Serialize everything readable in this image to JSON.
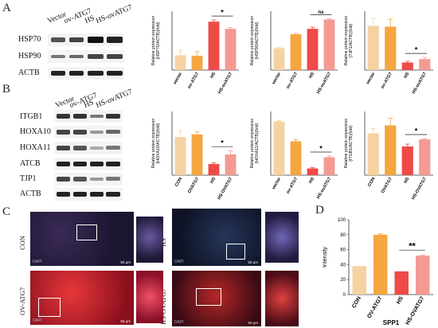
{
  "panels": {
    "a": "A",
    "b": "B",
    "c": "C",
    "d": "D"
  },
  "blot_a": {
    "lanes": [
      "Vector",
      "ov-ATG7",
      "HS",
      "HS-ovATG7"
    ],
    "rows": [
      "HSP70",
      "HSP90",
      "ACTB"
    ]
  },
  "blot_b": {
    "lanes": [
      "Vector",
      "ov-ATG7",
      "HS",
      "HS-ovATG7"
    ],
    "rows": [
      "ITGB1",
      "HOXA10",
      "HOXA11",
      "ATCB",
      "TJP1",
      "ACTB"
    ]
  },
  "colors": {
    "c1": "#f5d2a1",
    "c2": "#f4a640",
    "c3": "#ee4a48",
    "c4": "#f39a93"
  },
  "chart_data": [
    {
      "type": "bar",
      "ylabel": "Relative protein expression\n(HSP70/ACTB)(fold)",
      "categories": [
        "vector",
        "ov-ATG7",
        "HS",
        "HS-ovATG7"
      ],
      "values": [
        0.35,
        0.34,
        1.15,
        0.98
      ],
      "errors": [
        0.12,
        0.1,
        0.04,
        0.03
      ],
      "ylim": [
        0,
        1.4
      ],
      "sig": {
        "text": "*",
        "from": 2,
        "to": 3
      }
    },
    {
      "type": "bar",
      "ylabel": "Relative protein expression\n(HSP90/ACTB)(fold)",
      "categories": [
        "vector",
        "ov-ATG7",
        "HS",
        "HS-ovATG7"
      ],
      "values": [
        0.52,
        0.85,
        0.98,
        1.2
      ],
      "errors": [
        0.02,
        0.02,
        0.04,
        0.02
      ],
      "ylim": [
        0,
        1.4
      ],
      "sig": {
        "text": "ns",
        "from": 2,
        "to": 3
      }
    },
    {
      "type": "bar",
      "ylabel": "Relative protein expression\n(TJP1/ACTB)(fold)",
      "categories": [
        "vector",
        "ov-ATG7",
        "HS",
        "HS-ovATG7"
      ],
      "values": [
        1.05,
        1.03,
        0.18,
        0.26
      ],
      "errors": [
        0.18,
        0.18,
        0.03,
        0.04
      ],
      "ylim": [
        0,
        1.4
      ],
      "sig": {
        "text": "*",
        "from": 2,
        "to": 3
      }
    },
    {
      "type": "bar",
      "ylabel": "Relative protein expression\n(HOXA10/ACTB)(fold)",
      "categories": [
        "CON",
        "OVATG7",
        "HS",
        "HS-OVATG7"
      ],
      "values": [
        1.2,
        1.28,
        0.35,
        0.65
      ],
      "errors": [
        0.2,
        0.08,
        0.04,
        0.12
      ],
      "ylim": [
        0,
        2.0
      ],
      "sig": {
        "text": "*",
        "from": 2,
        "to": 3
      }
    },
    {
      "type": "bar",
      "ylabel": "Relative protein expression\n(HOXA11/ACTB)(fold)",
      "categories": [
        "vector",
        "ov-ATG7",
        "HS",
        "HS-ovATG7"
      ],
      "values": [
        1.35,
        0.85,
        0.17,
        0.45
      ],
      "errors": [
        0.02,
        0.04,
        0.02,
        0.03
      ],
      "ylim": [
        0,
        1.6
      ],
      "sig": {
        "text": "*",
        "from": 2,
        "to": 3
      }
    },
    {
      "type": "bar",
      "ylabel": "Relative protein expression\n(ITGB1/ACTB)(fold)",
      "categories": [
        "CON",
        "OVATG7",
        "HS",
        "HS-OVATG7"
      ],
      "values": [
        1.05,
        1.25,
        0.72,
        0.9
      ],
      "errors": [
        0.12,
        0.18,
        0.06,
        0.02
      ],
      "ylim": [
        0,
        1.6
      ],
      "sig": {
        "text": "*",
        "from": 2,
        "to": 3
      }
    },
    {
      "type": "bar",
      "title": "SPP1",
      "ylabel": "Intensity",
      "categories": [
        "CON",
        "OV-ATG7",
        "HS",
        "HS-OVATG7"
      ],
      "values": [
        38,
        80,
        31,
        52
      ],
      "errors": [
        0,
        1.5,
        0,
        1
      ],
      "yticks": [
        0,
        20,
        40,
        60,
        80,
        100
      ],
      "ylim": [
        0,
        100
      ],
      "sig": {
        "text": "**",
        "from": 2,
        "to": 3
      }
    }
  ],
  "micro": {
    "labels": [
      "CON",
      "HS",
      "OV-ATG7",
      "HS-OVATG7"
    ],
    "dapi": "DAPI",
    "scale": "50 μm"
  }
}
